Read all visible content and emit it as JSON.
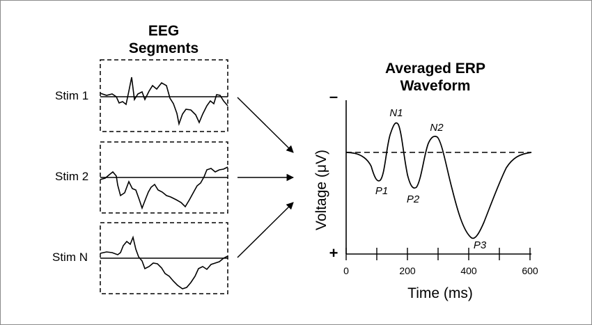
{
  "left_title": {
    "line1": "EEG",
    "line2": "Segments"
  },
  "right_title": {
    "line1": "Averaged ERP",
    "line2": "Waveform"
  },
  "stim_labels": [
    "Stim 1",
    "Stim 2",
    "Stim N"
  ],
  "y_axis": {
    "label": "Voltage (μV)",
    "negative_sign": "–",
    "positive_sign": "+"
  },
  "x_axis": {
    "label": "Time (ms)",
    "tick_labels": [
      "0",
      "200",
      "400",
      "600"
    ],
    "range": [
      0,
      600
    ]
  },
  "peak_labels": [
    "N1",
    "N2",
    "P1",
    "P2",
    "P3"
  ]
}
